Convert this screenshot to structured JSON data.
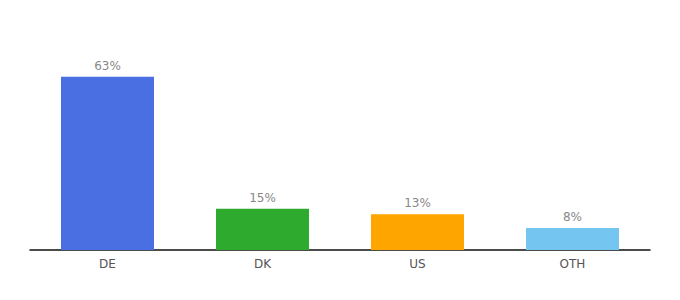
{
  "chart_data": {
    "type": "bar",
    "categories": [
      "DE",
      "DK",
      "US",
      "OTH"
    ],
    "values": [
      63,
      15,
      13,
      8
    ],
    "value_labels": [
      "63%",
      "15%",
      "13%",
      "8%"
    ],
    "colors": [
      "#4A6FE3",
      "#2EAA2E",
      "#FFA500",
      "#74C6F0"
    ],
    "ylim": [
      0,
      80
    ],
    "grid": false,
    "data_labels": true,
    "tick_labels": "x"
  }
}
